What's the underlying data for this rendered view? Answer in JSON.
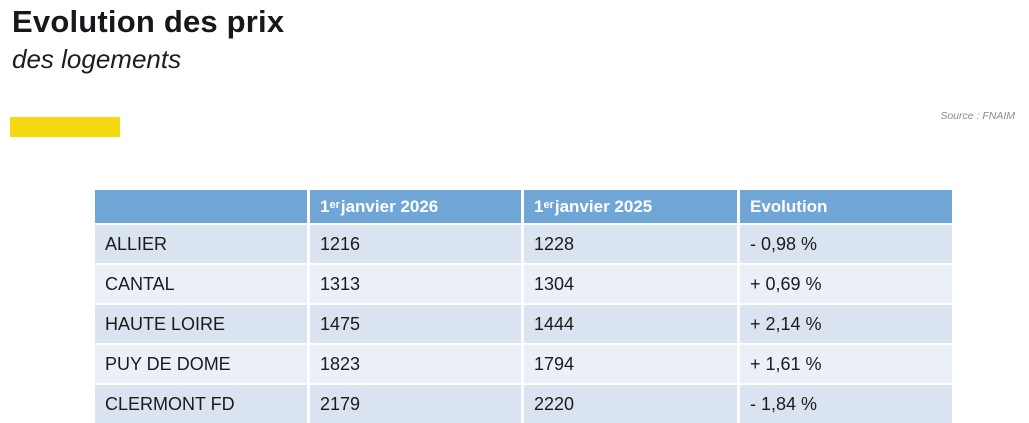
{
  "page": {
    "title": "Evolution des prix",
    "subtitle": "des logements",
    "source": "Source : FNAIM"
  },
  "colors": {
    "accent_yellow": "#F5DA11",
    "header_blue": "#6FA6D6",
    "row_odd": "#DAE4F1",
    "row_even": "#EBF0F8"
  },
  "table": {
    "columns": [
      {
        "label": ""
      },
      {
        "num": "1",
        "sup": "er",
        "rest": " janvier 2026"
      },
      {
        "num": "1",
        "sup": "er",
        "rest": " janvier 2025"
      },
      {
        "label": "Evolution"
      }
    ],
    "rows": [
      {
        "label": "ALLIER",
        "jan2026": "1216",
        "jan2025": "1228",
        "evolution": "- 0,98 %"
      },
      {
        "label": "CANTAL",
        "jan2026": "1313",
        "jan2025": "1304",
        "evolution": "+ 0,69 %"
      },
      {
        "label": "HAUTE LOIRE",
        "jan2026": "1475",
        "jan2025": "1444",
        "evolution": "+ 2,14 %"
      },
      {
        "label": "PUY DE DOME",
        "jan2026": "1823",
        "jan2025": "1794",
        "evolution": "+ 1,61 %"
      },
      {
        "label": "CLERMONT FD",
        "jan2026": "2179",
        "jan2025": "2220",
        "evolution": "- 1,84 %"
      }
    ]
  }
}
